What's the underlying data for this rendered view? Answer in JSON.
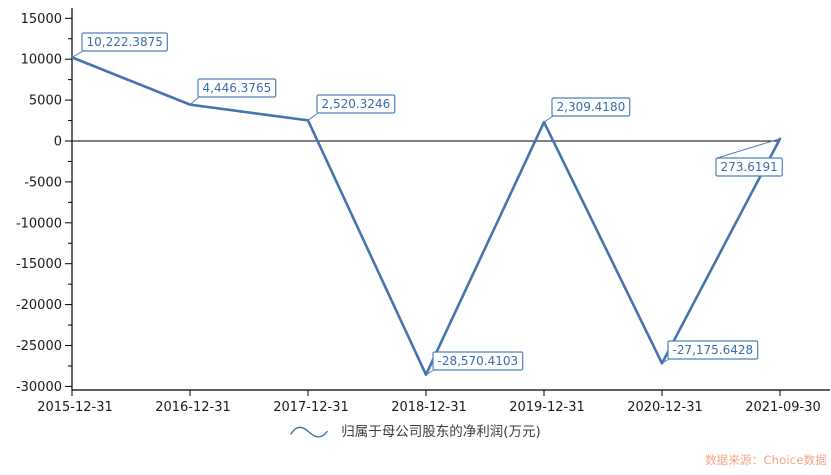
{
  "chart_data": {
    "type": "line",
    "title": "",
    "x_categories": [
      "2015-12-31",
      "2016-12-31",
      "2017-12-31",
      "2018-12-31",
      "2019-12-31",
      "2020-12-31",
      "2021-09-30"
    ],
    "series": [
      {
        "name": "归属于母公司股东的净利润(万元)",
        "values": [
          10222.3875,
          4446.3765,
          2520.3246,
          -28570.4103,
          2309.418,
          -27175.6428,
          273.6191
        ],
        "point_labels": [
          "10,222.3875",
          "4,446.3765",
          "2,520.3246",
          "-28,570.4103",
          "2,309.4180",
          "-27,175.6428",
          "273.6191"
        ],
        "color": "#4574ad"
      }
    ],
    "y_axis": {
      "min": -30000,
      "max": 15000,
      "major_step": 5000,
      "minor_step": 2500,
      "tick_labels": [
        "15000",
        "10000",
        "5000",
        "0",
        "-5000",
        "-10000",
        "-15000",
        "-20000",
        "-25000",
        "-30000"
      ]
    },
    "ylim": [
      -30000,
      15000
    ],
    "zero_line": true,
    "grid": false,
    "legend_position": "bottom",
    "xlabel": "",
    "ylabel": ""
  },
  "colors": {
    "series_line": "#4574ad",
    "callout_border": "#4f81bd",
    "callout_text": "#3c6cae",
    "axis": "#000000",
    "tick_label": "#1a1a1a",
    "legend_text": "#3d3d3d",
    "watermark": "#f3a585"
  },
  "legend": {
    "label": "归属于母公司股东的净利润(万元)"
  },
  "watermark": {
    "text": "数据来源：Choice数据"
  }
}
